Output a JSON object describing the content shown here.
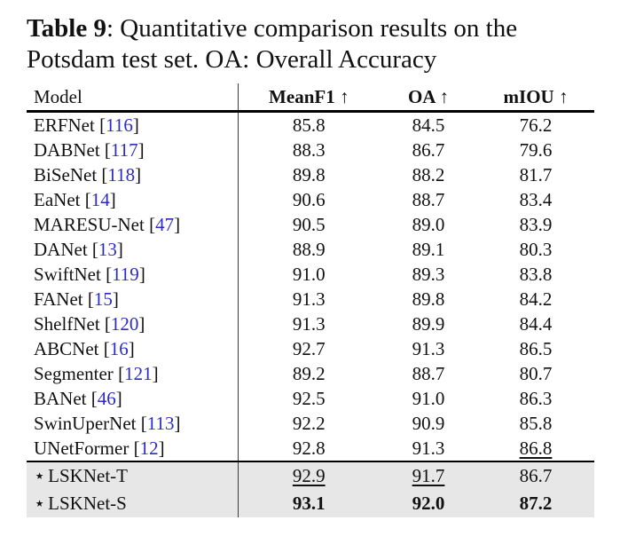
{
  "caption": {
    "bold_label": "Table 9",
    "line1_rest": ": Quantitative comparison results on the",
    "line2": "Potsdam test set. OA: Overall Accuracy"
  },
  "table": {
    "columns": [
      {
        "label": "Model"
      },
      {
        "label": "MeanF1 ↑"
      },
      {
        "label": "OA ↑"
      },
      {
        "label": "mIOU ↑"
      }
    ],
    "rows": [
      {
        "model": "ERFNet",
        "cite": "116",
        "values": [
          {
            "v": "85.8"
          },
          {
            "v": "84.5"
          },
          {
            "v": "76.2"
          }
        ]
      },
      {
        "model": "DABNet",
        "cite": "117",
        "values": [
          {
            "v": "88.3"
          },
          {
            "v": "86.7"
          },
          {
            "v": "79.6"
          }
        ]
      },
      {
        "model": "BiSeNet",
        "cite": "118",
        "values": [
          {
            "v": "89.8"
          },
          {
            "v": "88.2"
          },
          {
            "v": "81.7"
          }
        ]
      },
      {
        "model": "EaNet",
        "cite": "14",
        "values": [
          {
            "v": "90.6"
          },
          {
            "v": "88.7"
          },
          {
            "v": "83.4"
          }
        ]
      },
      {
        "model": "MARESU-Net",
        "cite": "47",
        "values": [
          {
            "v": "90.5"
          },
          {
            "v": "89.0"
          },
          {
            "v": "83.9"
          }
        ]
      },
      {
        "model": "DANet",
        "cite": "13",
        "values": [
          {
            "v": "88.9"
          },
          {
            "v": "89.1"
          },
          {
            "v": "80.3"
          }
        ]
      },
      {
        "model": "SwiftNet",
        "cite": "119",
        "values": [
          {
            "v": "91.0"
          },
          {
            "v": "89.3"
          },
          {
            "v": "83.8"
          }
        ]
      },
      {
        "model": "FANet",
        "cite": "15",
        "values": [
          {
            "v": "91.3"
          },
          {
            "v": "89.8"
          },
          {
            "v": "84.2"
          }
        ]
      },
      {
        "model": "ShelfNet",
        "cite": "120",
        "values": [
          {
            "v": "91.3"
          },
          {
            "v": "89.9"
          },
          {
            "v": "84.4"
          }
        ]
      },
      {
        "model": "ABCNet",
        "cite": "16",
        "values": [
          {
            "v": "92.7"
          },
          {
            "v": "91.3"
          },
          {
            "v": "86.5"
          }
        ]
      },
      {
        "model": "Segmenter",
        "cite": "121",
        "values": [
          {
            "v": "89.2"
          },
          {
            "v": "88.7"
          },
          {
            "v": "80.7"
          }
        ]
      },
      {
        "model": "BANet",
        "cite": "46",
        "values": [
          {
            "v": "92.5"
          },
          {
            "v": "91.0"
          },
          {
            "v": "86.3"
          }
        ]
      },
      {
        "model": "SwinUperNet",
        "cite": "113",
        "values": [
          {
            "v": "92.2"
          },
          {
            "v": "90.9"
          },
          {
            "v": "85.8"
          }
        ]
      },
      {
        "model": "UNetFormer",
        "cite": "12",
        "values": [
          {
            "v": "92.8"
          },
          {
            "v": "91.3"
          },
          {
            "v": "86.8",
            "style": "underline"
          }
        ]
      },
      {
        "model": "LSKNet-T",
        "star": "⋆",
        "highlight": true,
        "values": [
          {
            "v": "92.9",
            "style": "underline"
          },
          {
            "v": "91.7",
            "style": "underline"
          },
          {
            "v": "86.7"
          }
        ]
      },
      {
        "model": "LSKNet-S",
        "star": "⋆",
        "highlight": true,
        "values": [
          {
            "v": "93.1",
            "style": "bold"
          },
          {
            "v": "92.0",
            "style": "bold"
          },
          {
            "v": "87.2",
            "style": "bold"
          }
        ]
      }
    ]
  },
  "colors": {
    "citation_blue": "#2b2bc8",
    "highlight_bg": "#e7e7e7",
    "text": "#111111"
  }
}
